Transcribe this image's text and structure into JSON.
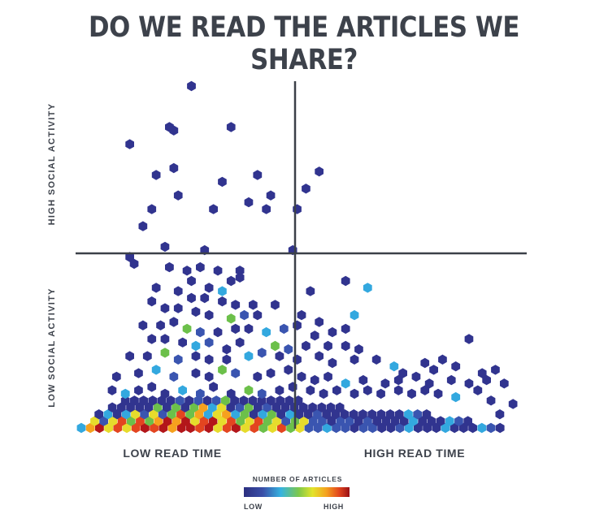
{
  "title": "DO WE READ THE ARTICLES WE SHARE?",
  "chart_data": {
    "type": "hexbin",
    "title": "DO WE READ THE ARTICLES WE SHARE?",
    "xlabel_low": "LOW READ TIME",
    "xlabel_high": "HIGH READ TIME",
    "ylabel_high": "HIGH SOCIAL ACTIVITY",
    "ylabel_low": "LOW SOCIAL ACTIVITY",
    "x_scale": "read time (relative, 0-100)",
    "y_scale": "social activity (relative, 0-100)",
    "xlim": [
      0,
      100
    ],
    "ylim": [
      0,
      100
    ],
    "divider_x": 48,
    "divider_y": 49,
    "legend": {
      "title": "NUMBER OF ARTICLES",
      "low": "LOW",
      "high": "HIGH"
    },
    "colors": [
      "#31348f",
      "#3a55b0",
      "#33a8df",
      "#6cc04a",
      "#e6dc2c",
      "#f6a11e",
      "#e34520",
      "#b3161a"
    ],
    "sparse_points": [
      [
        25,
        100
      ],
      [
        11,
        83
      ],
      [
        20,
        88
      ],
      [
        21,
        87
      ],
      [
        34,
        88
      ],
      [
        17,
        74
      ],
      [
        21,
        76
      ],
      [
        32,
        72
      ],
      [
        40,
        74
      ],
      [
        22,
        68
      ],
      [
        38,
        66
      ],
      [
        43,
        68
      ],
      [
        16,
        64
      ],
      [
        30,
        64
      ],
      [
        42,
        64
      ],
      [
        49,
        64
      ],
      [
        51,
        70
      ],
      [
        54,
        75
      ],
      [
        14,
        59
      ],
      [
        19,
        53
      ],
      [
        28,
        52
      ],
      [
        48,
        52
      ],
      [
        11,
        50
      ],
      [
        12,
        48
      ],
      [
        20,
        47
      ],
      [
        24,
        46
      ],
      [
        27,
        47
      ],
      [
        31,
        46
      ],
      [
        36,
        46
      ],
      [
        36,
        44
      ],
      [
        25,
        43
      ],
      [
        29,
        41
      ],
      [
        34,
        43
      ],
      [
        32,
        40
      ],
      [
        17,
        41
      ],
      [
        22,
        40
      ],
      [
        25,
        38
      ],
      [
        28,
        38
      ],
      [
        32,
        37
      ],
      [
        35,
        36
      ],
      [
        39,
        36
      ],
      [
        44,
        36
      ],
      [
        52,
        40
      ],
      [
        60,
        43
      ],
      [
        65,
        41
      ],
      [
        16,
        37
      ],
      [
        19,
        35
      ],
      [
        22,
        35
      ],
      [
        26,
        34
      ],
      [
        29,
        33
      ],
      [
        34,
        32
      ],
      [
        37,
        33
      ],
      [
        40,
        33
      ],
      [
        50,
        33
      ],
      [
        54,
        31
      ],
      [
        62,
        33
      ],
      [
        14,
        30
      ],
      [
        18,
        30
      ],
      [
        21,
        31
      ],
      [
        24,
        29
      ],
      [
        27,
        28
      ],
      [
        31,
        28
      ],
      [
        35,
        29
      ],
      [
        38,
        29
      ],
      [
        42,
        28
      ],
      [
        46,
        29
      ],
      [
        49,
        30
      ],
      [
        53,
        27
      ],
      [
        57,
        28
      ],
      [
        60,
        29
      ],
      [
        16,
        26
      ],
      [
        19,
        26
      ],
      [
        23,
        25
      ],
      [
        26,
        24
      ],
      [
        29,
        25
      ],
      [
        33,
        23
      ],
      [
        36,
        25
      ],
      [
        44,
        24
      ],
      [
        47,
        23
      ],
      [
        51,
        24
      ],
      [
        56,
        24
      ],
      [
        60,
        24
      ],
      [
        63,
        23
      ],
      [
        88,
        26
      ],
      [
        11,
        21
      ],
      [
        15,
        21
      ],
      [
        19,
        22
      ],
      [
        22,
        20
      ],
      [
        26,
        21
      ],
      [
        29,
        20
      ],
      [
        33,
        20
      ],
      [
        38,
        21
      ],
      [
        41,
        22
      ],
      [
        45,
        21
      ],
      [
        49,
        20
      ],
      [
        54,
        21
      ],
      [
        57,
        19
      ],
      [
        62,
        20
      ],
      [
        67,
        20
      ],
      [
        71,
        18
      ],
      [
        73,
        16
      ],
      [
        78,
        19
      ],
      [
        80,
        17
      ],
      [
        82,
        20
      ],
      [
        85,
        18
      ],
      [
        91,
        16
      ],
      [
        94,
        17
      ],
      [
        8,
        15
      ],
      [
        13,
        16
      ],
      [
        17,
        17
      ],
      [
        21,
        15
      ],
      [
        26,
        16
      ],
      [
        29,
        15
      ],
      [
        32,
        17
      ],
      [
        35,
        16
      ],
      [
        40,
        15
      ],
      [
        43,
        16
      ],
      [
        47,
        17
      ],
      [
        50,
        15
      ],
      [
        53,
        14
      ],
      [
        56,
        15
      ],
      [
        60,
        13
      ],
      [
        64,
        14
      ],
      [
        69,
        13
      ],
      [
        72,
        14
      ],
      [
        76,
        15
      ],
      [
        79,
        13
      ],
      [
        84,
        14
      ],
      [
        88,
        13
      ],
      [
        92,
        14
      ],
      [
        96,
        13
      ],
      [
        7,
        11
      ],
      [
        10,
        10
      ],
      [
        13,
        11
      ],
      [
        16,
        12
      ],
      [
        19,
        10
      ],
      [
        23,
        11
      ],
      [
        27,
        10
      ],
      [
        30,
        12
      ],
      [
        34,
        10
      ],
      [
        38,
        11
      ],
      [
        41,
        10
      ],
      [
        45,
        11
      ],
      [
        48,
        12
      ],
      [
        52,
        11
      ],
      [
        55,
        10
      ],
      [
        58,
        11
      ],
      [
        62,
        10
      ],
      [
        65,
        11
      ],
      [
        68,
        10
      ],
      [
        72,
        11
      ],
      [
        75,
        10
      ],
      [
        78,
        11
      ],
      [
        81,
        10
      ],
      [
        85,
        9
      ],
      [
        90,
        11
      ],
      [
        93,
        8
      ],
      [
        98,
        7
      ],
      [
        95,
        4
      ]
    ],
    "dense_rows": [
      {
        "y": 0,
        "x_from": 0,
        "x_to": 96,
        "peak_x": 22
      },
      {
        "y": 2,
        "x_from": 2,
        "x_to": 88,
        "peak_x": 24
      },
      {
        "y": 4,
        "x_from": 4,
        "x_to": 80,
        "peak_x": 26
      },
      {
        "y": 6,
        "x_from": 6,
        "x_to": 60,
        "peak_x": 28
      },
      {
        "y": 8,
        "x_from": 10,
        "x_to": 50,
        "peak_x": 30
      }
    ]
  }
}
